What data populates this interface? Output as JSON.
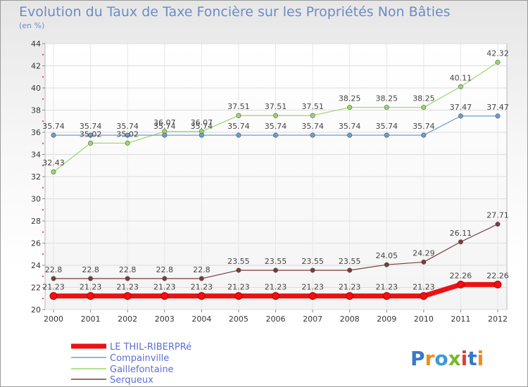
{
  "chart_data": {
    "type": "line",
    "title": "Evolution du Taux de Taxe Foncière sur les Propriétés Non Bâties",
    "subtitle": "(en %)",
    "xlabel": "",
    "ylabel": "",
    "ylim": [
      20,
      44
    ],
    "yticks": [
      20,
      22,
      24,
      26,
      28,
      30,
      32,
      34,
      36,
      38,
      40,
      42,
      44
    ],
    "categories": [
      "2000",
      "2001",
      "2002",
      "2003",
      "2004",
      "2005",
      "2006",
      "2007",
      "2008",
      "2009",
      "2010",
      "2011",
      "2012"
    ],
    "legend_position": "bottom-left",
    "series": [
      {
        "name": "LE THIL-RIBERPRé",
        "color": "#ee1111",
        "thick": true,
        "values": [
          21.23,
          21.23,
          21.23,
          21.23,
          21.23,
          21.23,
          21.23,
          21.23,
          21.23,
          21.23,
          21.23,
          22.26,
          22.26
        ],
        "labels": [
          "21.23",
          "21.23",
          "21.23",
          "21.23",
          "21.23",
          "21.23",
          "21.23",
          "21.23",
          "21.23",
          "21.23",
          "21.23",
          "22.26",
          "22.26"
        ]
      },
      {
        "name": "Compainville",
        "color": "#6a9fd0",
        "values": [
          35.74,
          35.74,
          35.74,
          35.74,
          35.74,
          35.74,
          35.74,
          35.74,
          35.74,
          35.74,
          35.74,
          37.47,
          37.47
        ],
        "labels": [
          "35.74",
          "35.74",
          "35.74",
          "35.74",
          "35.74",
          "35.74",
          "35.74",
          "35.74",
          "35.74",
          "35.74",
          "35.74",
          "37.47",
          "37.47"
        ]
      },
      {
        "name": "Gaillefontaine",
        "color": "#9ad86a",
        "values": [
          32.43,
          35.02,
          35.02,
          36.07,
          36.07,
          37.51,
          37.51,
          37.51,
          38.25,
          38.25,
          38.25,
          40.11,
          42.32
        ],
        "labels": [
          "32.43",
          "35.02",
          "35.02",
          "36.07",
          "36.07",
          "37.51",
          "37.51",
          "37.51",
          "38.25",
          "38.25",
          "38.25",
          "40.11",
          "42.32"
        ]
      },
      {
        "name": "Serqueux",
        "color": "#7a3b3b",
        "values": [
          22.8,
          22.8,
          22.8,
          22.8,
          22.8,
          23.55,
          23.55,
          23.55,
          23.55,
          24.05,
          24.29,
          26.11,
          27.71
        ],
        "labels": [
          "22.8",
          "22.8",
          "22.8",
          "22.8",
          "22.8",
          "23.55",
          "23.55",
          "23.55",
          "23.55",
          "24.05",
          "24.29",
          "26.11",
          "27.71"
        ]
      }
    ]
  },
  "watermark": {
    "text": "Proxiti",
    "colors": [
      "#3a78c8",
      "#f08c1c",
      "#3a9ad8",
      "#7ab82a",
      "#e23a3a",
      "#3a78c8",
      "#f08c1c"
    ]
  }
}
